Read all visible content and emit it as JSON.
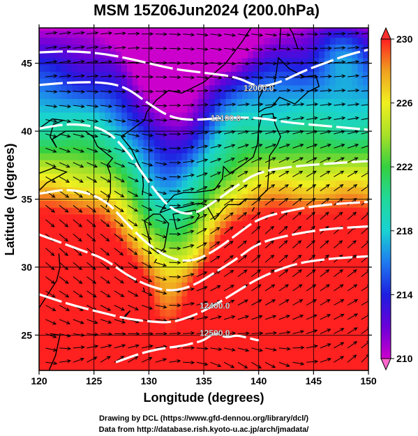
{
  "chart_data": {
    "type": "heatmap",
    "title": "MSM 15Z06Jun2024 (200.0hPa)",
    "xlabel": "Longitude (degrees)",
    "ylabel": "Latitude  (degrees)",
    "xlim": [
      120,
      150
    ],
    "ylim": [
      22.4,
      47.6
    ],
    "x_ticks": [
      "120",
      "125",
      "130",
      "135",
      "140",
      "145",
      "150"
    ],
    "y_ticks": [
      "25",
      "30",
      "35",
      "40",
      "45"
    ],
    "colorbar": {
      "min": 210,
      "max": 230,
      "ticks": [
        "210",
        "214",
        "218",
        "222",
        "226",
        "230"
      ],
      "stops": [
        {
          "value": 210,
          "color": "#cc00cc"
        },
        {
          "value": 212,
          "color": "#6a00d8"
        },
        {
          "value": 214,
          "color": "#1e1ee0"
        },
        {
          "value": 216,
          "color": "#1f7af0"
        },
        {
          "value": 218,
          "color": "#19d2d2"
        },
        {
          "value": 220,
          "color": "#22d89a"
        },
        {
          "value": 222,
          "color": "#34d040"
        },
        {
          "value": 224,
          "color": "#a8e028"
        },
        {
          "value": 226,
          "color": "#f0f020"
        },
        {
          "value": 228,
          "color": "#f0a020"
        },
        {
          "value": 230,
          "color": "#ff2020"
        }
      ]
    },
    "contours": [
      {
        "label": "12000.0",
        "points": [
          [
            120,
            45.8
          ],
          [
            123,
            45.9
          ],
          [
            126,
            45.7
          ],
          [
            129,
            45.2
          ],
          [
            132,
            44.6
          ],
          [
            135,
            44.3
          ],
          [
            138,
            44.0
          ],
          [
            140,
            43.2
          ],
          [
            142,
            43.6
          ],
          [
            144,
            44.4
          ],
          [
            146,
            45.0
          ],
          [
            148,
            45.6
          ],
          [
            150,
            46.0
          ]
        ]
      },
      {
        "label": "12100.0",
        "points": [
          [
            120,
            43.4
          ],
          [
            123,
            43.6
          ],
          [
            126,
            43.6
          ],
          [
            128,
            43.2
          ],
          [
            130,
            42.0
          ],
          [
            132,
            41.0
          ],
          [
            134,
            40.8
          ],
          [
            137,
            41.0
          ],
          [
            140,
            41.0
          ],
          [
            143,
            40.6
          ],
          [
            146,
            40.4
          ],
          [
            150,
            40.1
          ]
        ]
      },
      {
        "label": "",
        "points": [
          [
            120,
            40.2
          ],
          [
            123,
            40.6
          ],
          [
            126,
            40.2
          ],
          [
            128,
            38.6
          ],
          [
            130,
            36.2
          ],
          [
            132,
            34.2
          ],
          [
            134,
            33.8
          ],
          [
            136,
            34.8
          ],
          [
            138,
            36.0
          ],
          [
            140,
            37.0
          ],
          [
            143,
            37.4
          ],
          [
            146,
            37.6
          ],
          [
            150,
            37.8
          ]
        ]
      },
      {
        "label": "",
        "points": [
          [
            120,
            35.4
          ],
          [
            123,
            35.8
          ],
          [
            126,
            35.0
          ],
          [
            128,
            33.2
          ],
          [
            130,
            31.6
          ],
          [
            132,
            30.6
          ],
          [
            134,
            30.4
          ],
          [
            136,
            31.2
          ],
          [
            138,
            32.4
          ],
          [
            140,
            33.6
          ],
          [
            143,
            34.2
          ],
          [
            146,
            34.6
          ],
          [
            150,
            34.8
          ]
        ]
      },
      {
        "label": "",
        "points": [
          [
            120,
            32.4
          ],
          [
            122,
            31.8
          ],
          [
            124,
            31.2
          ],
          [
            126,
            30.6
          ],
          [
            128,
            29.4
          ],
          [
            130,
            28.6
          ],
          [
            132,
            28.2
          ],
          [
            134,
            28.6
          ],
          [
            136,
            29.6
          ],
          [
            138,
            30.6
          ],
          [
            140,
            31.8
          ],
          [
            143,
            32.4
          ],
          [
            146,
            32.8
          ],
          [
            150,
            33.0
          ]
        ]
      },
      {
        "label": "12400.0",
        "points": [
          [
            120,
            28.0
          ],
          [
            123,
            27.2
          ],
          [
            126,
            26.6
          ],
          [
            128,
            26.2
          ],
          [
            130,
            26.0
          ],
          [
            132,
            25.9
          ],
          [
            134,
            26.4
          ],
          [
            136,
            27.2
          ],
          [
            138,
            28.2
          ],
          [
            140,
            29.2
          ],
          [
            143,
            30.2
          ],
          [
            146,
            30.6
          ],
          [
            150,
            30.8
          ]
        ]
      },
      {
        "label": "12500.0",
        "points": [
          [
            127,
            23.0
          ],
          [
            129,
            23.6
          ],
          [
            131,
            24.0
          ],
          [
            133,
            24.2
          ],
          [
            134,
            24.4
          ],
          [
            135,
            24.6
          ],
          [
            136,
            25.2
          ],
          [
            137,
            24.8
          ],
          [
            138,
            25.0
          ],
          [
            139,
            24.8
          ],
          [
            140,
            24.6
          ]
        ]
      }
    ]
  },
  "credits": {
    "line1": "Drawing by DCL (https://www.gfd-dennou.org/library/dcl/)",
    "line2": "Data from http://database.rish.kyoto-u.ac.jp/arch/jmadata/"
  }
}
